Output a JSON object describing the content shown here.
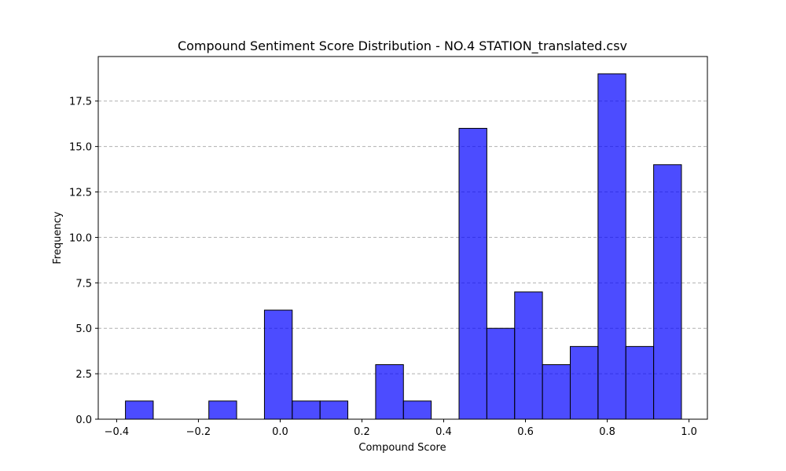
{
  "chart_data": {
    "type": "bar",
    "title": "Compound Sentiment Score Distribution - NO.4 STATION_translated.csv",
    "xlabel": "Compound Score",
    "ylabel": "Frequency",
    "xlim": [
      -0.445,
      1.045
    ],
    "ylim": [
      0,
      19.95
    ],
    "xticks": [
      -0.4,
      -0.2,
      0.0,
      0.2,
      0.4,
      0.6,
      0.8,
      1.0
    ],
    "xtick_labels": [
      "−0.4",
      "−0.2",
      "0.0",
      "0.2",
      "0.4",
      "0.6",
      "0.8",
      "1.0"
    ],
    "yticks": [
      0,
      2.5,
      5,
      7.5,
      10,
      12.5,
      15,
      17.5
    ],
    "ytick_labels": [
      "0.0",
      "2.5",
      "5.0",
      "7.5",
      "10.0",
      "12.5",
      "15.0",
      "17.5"
    ],
    "grid": "y-dashed",
    "bar_color": "#0000ff",
    "bar_opacity": 0.7,
    "edge_color": "#000000",
    "bins": [
      {
        "x0": -0.3785,
        "x1": -0.3105,
        "count": 1
      },
      {
        "x0": -0.3105,
        "x1": -0.2425,
        "count": 0
      },
      {
        "x0": -0.2425,
        "x1": -0.1745,
        "count": 0
      },
      {
        "x0": -0.1745,
        "x1": -0.1065,
        "count": 1
      },
      {
        "x0": -0.1065,
        "x1": -0.0385,
        "count": 0
      },
      {
        "x0": -0.0385,
        "x1": 0.0295,
        "count": 6
      },
      {
        "x0": 0.0295,
        "x1": 0.0975,
        "count": 1
      },
      {
        "x0": 0.0975,
        "x1": 0.1655,
        "count": 1
      },
      {
        "x0": 0.1655,
        "x1": 0.2335,
        "count": 0
      },
      {
        "x0": 0.2335,
        "x1": 0.3015,
        "count": 3
      },
      {
        "x0": 0.3015,
        "x1": 0.3695,
        "count": 1
      },
      {
        "x0": 0.3695,
        "x1": 0.4375,
        "count": 0
      },
      {
        "x0": 0.4375,
        "x1": 0.5055,
        "count": 16
      },
      {
        "x0": 0.5055,
        "x1": 0.5735,
        "count": 5
      },
      {
        "x0": 0.5735,
        "x1": 0.6415,
        "count": 7
      },
      {
        "x0": 0.6415,
        "x1": 0.7095,
        "count": 3
      },
      {
        "x0": 0.7095,
        "x1": 0.7775,
        "count": 4
      },
      {
        "x0": 0.7775,
        "x1": 0.8455,
        "count": 19
      },
      {
        "x0": 0.8455,
        "x1": 0.9135,
        "count": 4
      },
      {
        "x0": 0.9135,
        "x1": 0.9815,
        "count": 14
      }
    ]
  }
}
